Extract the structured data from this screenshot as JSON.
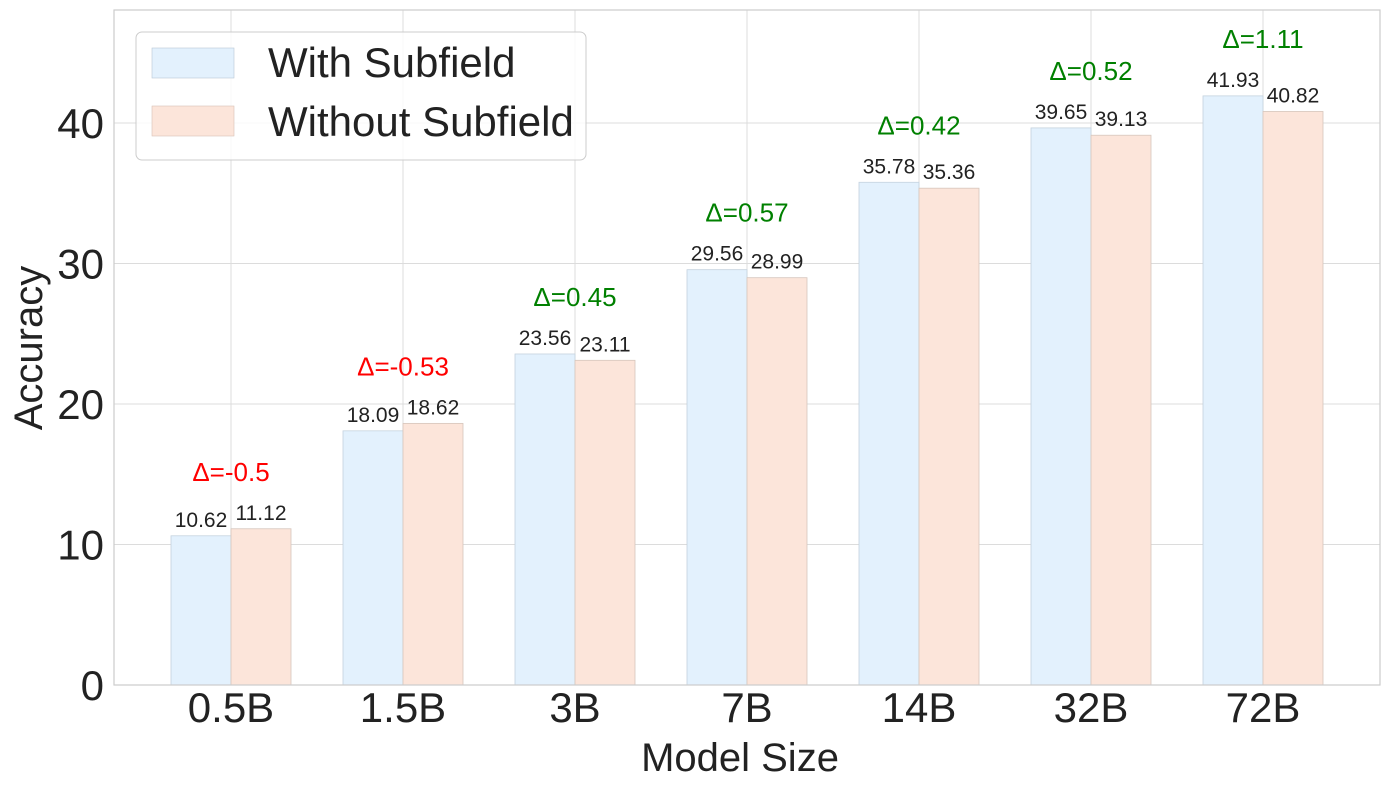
{
  "chart_data": {
    "type": "bar",
    "title": "",
    "xlabel": "Model Size",
    "ylabel": "Accuracy",
    "categories": [
      "0.5B",
      "1.5B",
      "3B",
      "7B",
      "14B",
      "32B",
      "72B"
    ],
    "series": [
      {
        "name": "With Subfield",
        "color": "#e3f1fd",
        "values": [
          10.62,
          18.09,
          23.56,
          29.56,
          35.78,
          39.65,
          41.93
        ]
      },
      {
        "name": "Without Subfield",
        "color": "#fce5da",
        "values": [
          11.12,
          18.62,
          23.11,
          28.99,
          35.36,
          39.13,
          40.82
        ]
      }
    ],
    "bar_labels": [
      [
        "10.62",
        "18.09",
        "23.56",
        "29.56",
        "35.78",
        "39.65",
        "41.93"
      ],
      [
        "11.12",
        "18.62",
        "23.11",
        "28.99",
        "35.36",
        "39.13",
        "40.82"
      ]
    ],
    "annotations": [
      {
        "text": "Δ=-0.5",
        "color": "#ff0000"
      },
      {
        "text": "Δ=-0.53",
        "color": "#ff0000"
      },
      {
        "text": "Δ=0.45",
        "color": "#008000"
      },
      {
        "text": "Δ=0.57",
        "color": "#008000"
      },
      {
        "text": "Δ=0.42",
        "color": "#008000"
      },
      {
        "text": "Δ=0.52",
        "color": "#008000"
      },
      {
        "text": "Δ=1.11",
        "color": "#008000"
      }
    ],
    "yticks": [
      "0",
      "10",
      "20",
      "30",
      "40"
    ],
    "ylim": [
      0,
      48
    ],
    "grid": true,
    "legend_position": "top-left"
  }
}
